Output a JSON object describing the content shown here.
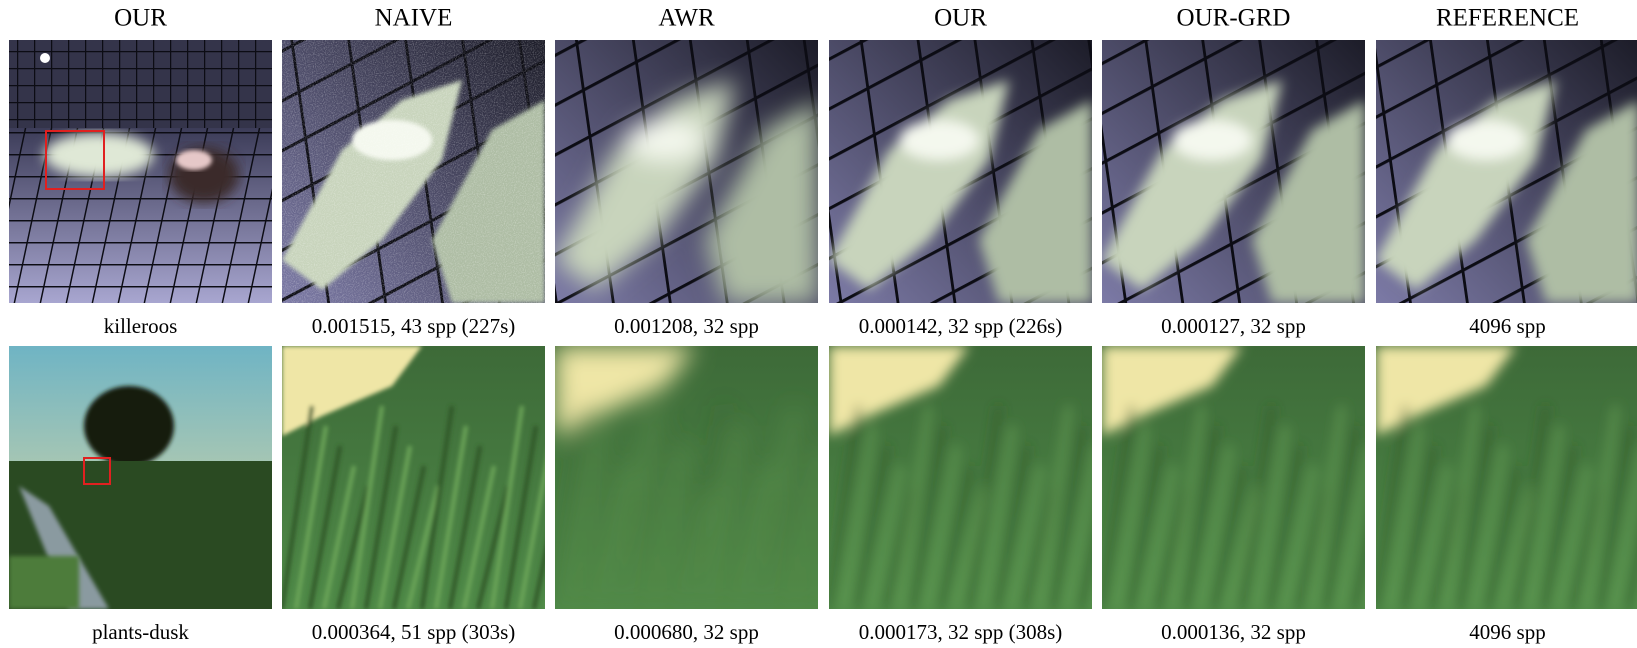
{
  "columns": [
    "OUR",
    "NAIVE",
    "AWR",
    "OUR",
    "OUR-GRD",
    "REFERENCE"
  ],
  "rows": [
    {
      "captions": [
        "killeroos",
        "0.001515, 43 spp (227s)",
        "0.001208, 32 spp",
        "0.000142, 32 spp (226s)",
        "0.000127, 32 spp",
        "4096 spp"
      ]
    },
    {
      "captions": [
        "plants-dusk",
        "0.000364, 51 spp (303s)",
        "0.000680, 32 spp",
        "0.000173, 32 spp (308s)",
        "0.000136, 32 spp",
        "4096 spp"
      ]
    }
  ]
}
